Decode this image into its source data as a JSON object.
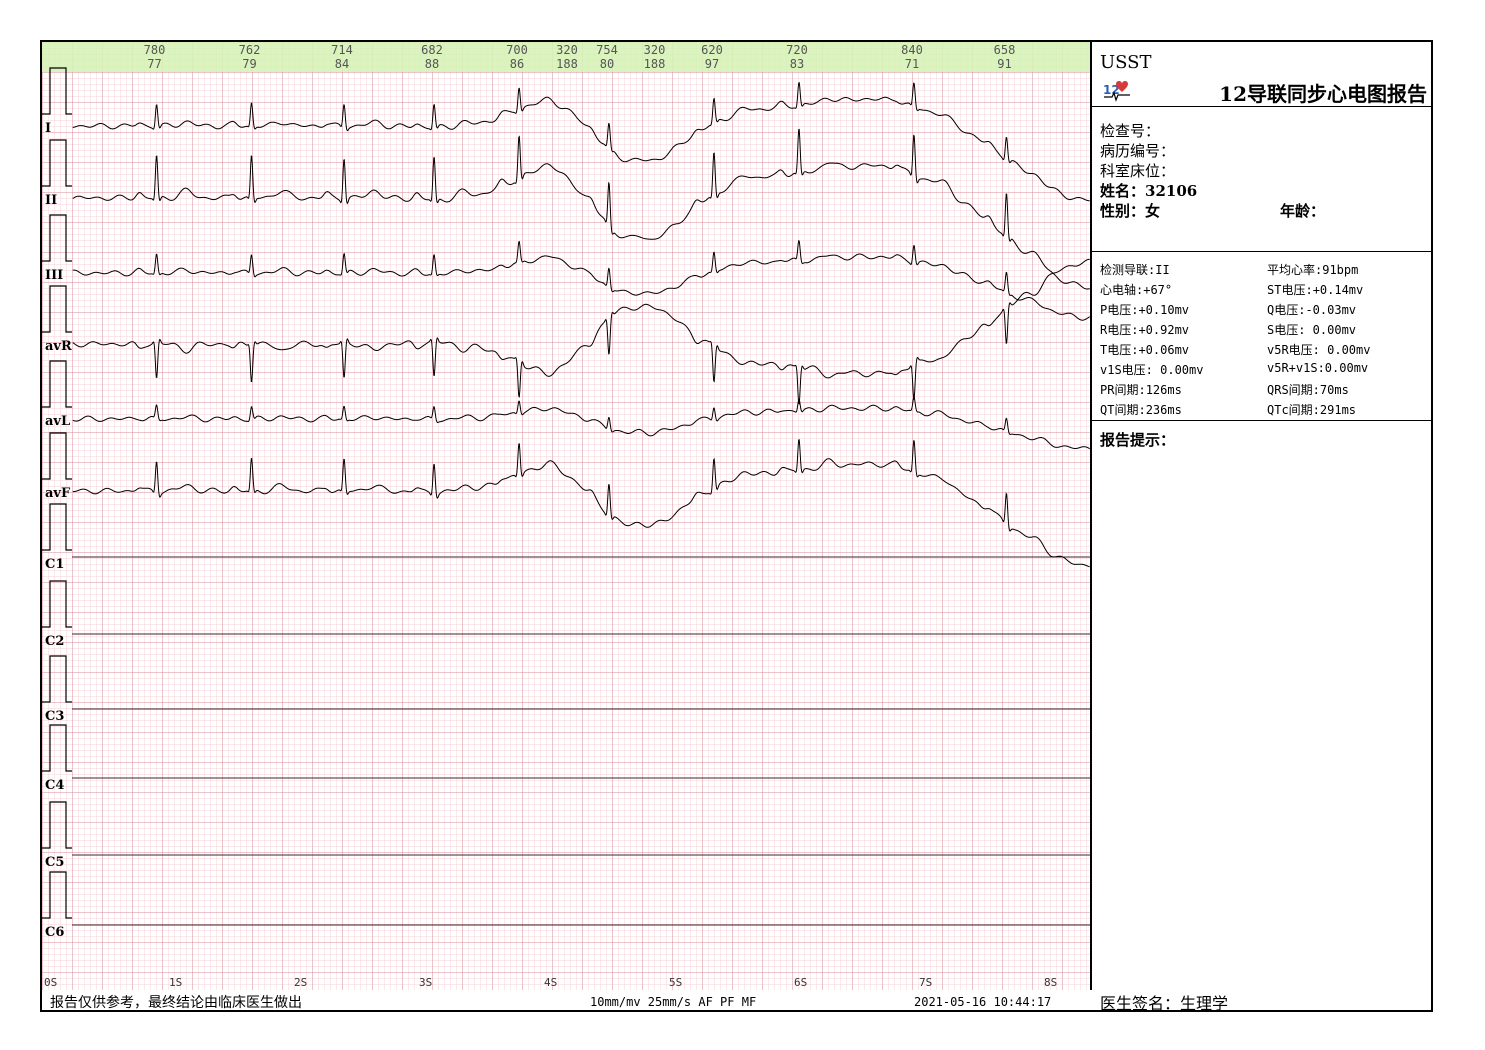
{
  "header": {
    "brand": "USST",
    "title": "12导联同步心电图报告",
    "logo_icon": "heart-ecg-logo"
  },
  "patient": {
    "exam_no_label": "检查号：",
    "record_no_label": "病历编号：",
    "dept_bed_label": "科室床位：",
    "name_label": "姓名：",
    "name_value": "32106",
    "sex_label": "性别：",
    "sex_value": "女",
    "age_label": "年龄："
  },
  "params": [
    {
      "label": "检测导联:",
      "value": "II"
    },
    {
      "label": "平均心率:",
      "value": "91bpm"
    },
    {
      "label": "心电轴:",
      "value": "+67°"
    },
    {
      "label": "ST电压:",
      "value": "+0.14mv"
    },
    {
      "label": "P电压:",
      "value": "+0.10mv"
    },
    {
      "label": "Q电压:",
      "value": "-0.03mv"
    },
    {
      "label": "R电压:",
      "value": "+0.92mv"
    },
    {
      "label": "S电压:",
      "value": " 0.00mv"
    },
    {
      "label": "T电压:",
      "value": "+0.06mv"
    },
    {
      "label": "v5R电压:",
      "value": " 0.00mv"
    },
    {
      "label": "v1S电压:",
      "value": " 0.00mv"
    },
    {
      "label": "v5R+v1S:",
      "value": "0.00mv"
    },
    {
      "label": "PR间期:",
      "value": "126ms"
    },
    {
      "label": "QRS间期:",
      "value": "70ms"
    },
    {
      "label": "QT间期:",
      "value": "236ms"
    },
    {
      "label": "QTc间期:",
      "value": "291ms"
    }
  ],
  "report": {
    "hint_label": "报告提示：",
    "signature_label": "医生签名：",
    "signature_value": "生理学"
  },
  "footer": {
    "disclaimer": "报告仅供参考，最终结论由临床医生做出",
    "settings": "10mm/mv  25mm/s  AF  PF  MF",
    "timestamp": "2021-05-16 10:44:17"
  },
  "colors": {
    "grid_minor": "#f2c4cc",
    "grid_major": "#d98a96",
    "rr_band": "#d4f2b4",
    "trace": "#000000"
  },
  "chart_data": {
    "type": "ecg",
    "leads": [
      "I",
      "II",
      "III",
      "avR",
      "avL",
      "avF",
      "C1",
      "C2",
      "C3",
      "C4",
      "C5",
      "C6"
    ],
    "time_ticks": [
      "0S",
      "1S",
      "2S",
      "3S",
      "4S",
      "5S",
      "6S",
      "7S",
      "8S"
    ],
    "time_range_s": [
      0,
      8.4
    ],
    "beats": [
      {
        "t": 0.82,
        "rr": "780",
        "hr": "77"
      },
      {
        "t": 1.58,
        "rr": "762",
        "hr": "79"
      },
      {
        "t": 2.32,
        "rr": "714",
        "hr": "84"
      },
      {
        "t": 3.04,
        "rr": "682",
        "hr": "88"
      },
      {
        "t": 3.72,
        "rr": "700",
        "hr": "86"
      },
      {
        "t": 4.12,
        "rr": "320",
        "hr": "188"
      },
      {
        "t": 4.44,
        "rr": "754",
        "hr": "80"
      },
      {
        "t": 4.82,
        "rr": "320",
        "hr": "188"
      },
      {
        "t": 5.28,
        "rr": "620",
        "hr": "97"
      },
      {
        "t": 5.96,
        "rr": "720",
        "hr": "83"
      },
      {
        "t": 6.88,
        "rr": "840",
        "hr": "71"
      },
      {
        "t": 7.62,
        "rr": "658",
        "hr": "91"
      }
    ]
  }
}
